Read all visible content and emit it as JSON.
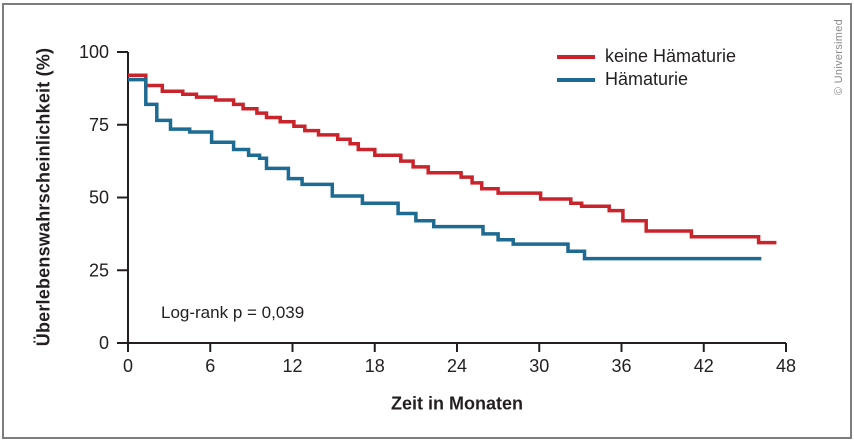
{
  "frame": {
    "border_color": "#7d7d7d",
    "background": "#ffffff"
  },
  "watermark": {
    "text": "© Universimed",
    "color": "#8a8a8a"
  },
  "chart_data": {
    "type": "line",
    "subtype": "kaplan-meier-step",
    "title": "",
    "xlabel": "Zeit in Monaten",
    "ylabel": "Überlebenswahrscheinlichkeit  (%)",
    "annotation": "Log-rank p = 0,039",
    "xlim": [
      0,
      48
    ],
    "ylim": [
      0,
      100
    ],
    "xticks": [
      0,
      6,
      12,
      18,
      24,
      30,
      36,
      42,
      48
    ],
    "yticks": [
      0,
      25,
      50,
      75,
      100
    ],
    "grid": false,
    "legend_position": "top-right",
    "axis_color": "#231f20",
    "series": [
      {
        "name": "keine Hämaturie",
        "color": "#c9242b",
        "end_t": 47.3,
        "points": [
          [
            0,
            92
          ],
          [
            1.3,
            88.5
          ],
          [
            2.5,
            86.5
          ],
          [
            4,
            85.5
          ],
          [
            5,
            84.5
          ],
          [
            6.4,
            83.5
          ],
          [
            7.7,
            82
          ],
          [
            8.4,
            80.5
          ],
          [
            9.4,
            79
          ],
          [
            10.1,
            77.5
          ],
          [
            11.1,
            76
          ],
          [
            12.1,
            74.5
          ],
          [
            12.9,
            73
          ],
          [
            13.9,
            71.5
          ],
          [
            15.3,
            70
          ],
          [
            16.2,
            68.5
          ],
          [
            16.8,
            66.5
          ],
          [
            18,
            64.5
          ],
          [
            19.9,
            62.5
          ],
          [
            20.8,
            60.5
          ],
          [
            21.9,
            58.5
          ],
          [
            24.3,
            57
          ],
          [
            25.1,
            55
          ],
          [
            25.8,
            53
          ],
          [
            27,
            51.5
          ],
          [
            30.1,
            49.5
          ],
          [
            32.3,
            48
          ],
          [
            33.1,
            47
          ],
          [
            35.1,
            45.5
          ],
          [
            36.1,
            42
          ],
          [
            37.8,
            38.5
          ],
          [
            41.1,
            36.5
          ],
          [
            46,
            34.5
          ]
        ]
      },
      {
        "name": "Hämaturie",
        "color": "#1d6a92",
        "end_t": 46.2,
        "points": [
          [
            0,
            90.5
          ],
          [
            1.3,
            82
          ],
          [
            2.1,
            76.5
          ],
          [
            3.1,
            73.5
          ],
          [
            4.5,
            72.5
          ],
          [
            6.1,
            69
          ],
          [
            7.7,
            66.5
          ],
          [
            8.8,
            64.5
          ],
          [
            9.6,
            63.5
          ],
          [
            10.1,
            60
          ],
          [
            11.7,
            56.5
          ],
          [
            12.7,
            54.5
          ],
          [
            14.9,
            50.5
          ],
          [
            17.1,
            48
          ],
          [
            19.7,
            44.5
          ],
          [
            21,
            42
          ],
          [
            22.3,
            40
          ],
          [
            25.9,
            37.5
          ],
          [
            27,
            35.5
          ],
          [
            28.1,
            34
          ],
          [
            32.1,
            31.5
          ],
          [
            33.3,
            29
          ]
        ]
      }
    ]
  }
}
